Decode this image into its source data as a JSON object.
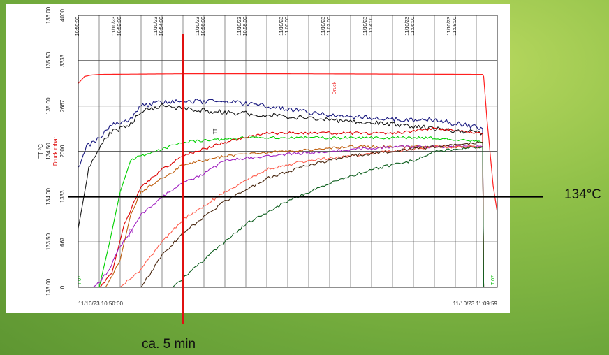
{
  "chart_data": {
    "type": "line",
    "x_start": "11/10/23 10:50:00",
    "x_end": "11/10/23 11:09:59",
    "xlim_min": [
      0,
      20
    ],
    "x_tick_labels": [
      [
        "",
        "10:50:00"
      ],
      [
        "11/10/23",
        "10:52:00"
      ],
      [
        "11/10/23",
        "10:54:00"
      ],
      [
        "11/10/23",
        "10:56:00"
      ],
      [
        "11/10/23",
        "10:58:00"
      ],
      [
        "11/10/23",
        "11:00:00"
      ],
      [
        "11/10/23",
        "11:02:00"
      ],
      [
        "11/10/23",
        "11:04:00"
      ],
      [
        "11/10/23",
        "11:06:00"
      ],
      [
        "11/10/23",
        "11:08:00"
      ]
    ],
    "y_temp_label": "TT °C",
    "y_temp_ticks": [
      "133.00",
      "133.50",
      "134.00",
      "134.50",
      "135.00",
      "135.50",
      "136.00"
    ],
    "y_temp_range": [
      133.0,
      136.0
    ],
    "y_press_label": "Druck mbar",
    "y_press_ticks": [
      "0",
      "667",
      "1333",
      "2000",
      "2667",
      "3333",
      "4000"
    ],
    "y_press_range": [
      0,
      4000
    ],
    "grid": true,
    "series": [
      {
        "name": "Druck",
        "axis": "pressure",
        "color": "#ff2020",
        "points": [
          [
            0,
            3000
          ],
          [
            0.3,
            3100
          ],
          [
            0.6,
            3120
          ],
          [
            1,
            3130
          ],
          [
            5,
            3140
          ],
          [
            10,
            3140
          ],
          [
            15,
            3135
          ],
          [
            19.3,
            3130
          ],
          [
            19.35,
            3100
          ],
          [
            19.5,
            2500
          ],
          [
            19.8,
            1500
          ],
          [
            20,
            1100
          ]
        ]
      },
      {
        "name": "TT",
        "axis": "temp",
        "color": "#1a1a80",
        "points": [
          [
            0,
            134.3
          ],
          [
            0.4,
            134.55
          ],
          [
            1,
            134.65
          ],
          [
            1.6,
            134.8
          ],
          [
            2.5,
            134.85
          ],
          [
            3,
            135.0
          ],
          [
            4,
            135.05
          ],
          [
            5,
            135.05
          ],
          [
            7,
            135.05
          ],
          [
            9,
            135.0
          ],
          [
            12,
            134.9
          ],
          [
            15,
            134.85
          ],
          [
            17,
            134.85
          ],
          [
            19.3,
            134.75
          ],
          [
            19.35,
            133.0
          ]
        ]
      },
      {
        "name": "",
        "axis": "temp",
        "color": "#1a1a1a",
        "points": [
          [
            0,
            133.65
          ],
          [
            0.5,
            134.3
          ],
          [
            1,
            134.55
          ],
          [
            1.5,
            134.7
          ],
          [
            2.5,
            134.8
          ],
          [
            3,
            134.95
          ],
          [
            4,
            135.0
          ],
          [
            6,
            134.95
          ],
          [
            9,
            134.9
          ],
          [
            12,
            134.85
          ],
          [
            15,
            134.8
          ],
          [
            17,
            134.75
          ],
          [
            19.3,
            134.7
          ],
          [
            19.35,
            133.0
          ]
        ]
      },
      {
        "name": "",
        "axis": "temp",
        "color": "#00d000",
        "points": [
          [
            1,
            133.0
          ],
          [
            1.5,
            133.5
          ],
          [
            2,
            134.05
          ],
          [
            2.5,
            134.4
          ],
          [
            3,
            134.45
          ],
          [
            5,
            134.6
          ],
          [
            8,
            134.65
          ],
          [
            11,
            134.65
          ],
          [
            14,
            134.65
          ],
          [
            17,
            134.65
          ],
          [
            19.3,
            134.6
          ],
          [
            19.35,
            133.0
          ],
          [
            19.6,
            133.0
          ]
        ]
      },
      {
        "name": "",
        "axis": "temp",
        "color": "#dd0000",
        "points": [
          [
            1,
            133.0
          ],
          [
            1.6,
            133.15
          ],
          [
            2.2,
            133.7
          ],
          [
            3,
            134.1
          ],
          [
            4,
            134.3
          ],
          [
            5,
            134.45
          ],
          [
            7,
            134.6
          ],
          [
            9,
            134.7
          ],
          [
            12,
            134.7
          ],
          [
            15,
            134.7
          ],
          [
            17,
            134.75
          ],
          [
            19.3,
            134.7
          ],
          [
            19.35,
            133.0
          ]
        ]
      },
      {
        "name": "",
        "axis": "temp",
        "color": "#c06010",
        "points": [
          [
            1.3,
            133.0
          ],
          [
            2,
            133.3
          ],
          [
            2.5,
            133.8
          ],
          [
            3,
            134.05
          ],
          [
            4,
            134.2
          ],
          [
            5,
            134.35
          ],
          [
            7,
            134.45
          ],
          [
            10,
            134.5
          ],
          [
            13,
            134.55
          ],
          [
            16,
            134.55
          ],
          [
            19.3,
            134.55
          ],
          [
            19.35,
            133.0
          ]
        ]
      },
      {
        "name": "",
        "axis": "temp",
        "color": "#a020c0",
        "points": [
          [
            0.7,
            133.0
          ],
          [
            1,
            133.05
          ],
          [
            1.5,
            133.2
          ],
          [
            2,
            133.45
          ],
          [
            2.5,
            133.6
          ],
          [
            3,
            133.8
          ],
          [
            4,
            134.0
          ],
          [
            5,
            134.15
          ],
          [
            6,
            134.25
          ],
          [
            7,
            134.4
          ],
          [
            9,
            134.45
          ],
          [
            12,
            134.5
          ],
          [
            15,
            134.55
          ],
          [
            17,
            134.55
          ],
          [
            19.3,
            134.55
          ],
          [
            19.35,
            133.0
          ]
        ]
      },
      {
        "name": "",
        "axis": "temp",
        "color": "#ff6050",
        "points": [
          [
            2,
            133.0
          ],
          [
            3,
            133.2
          ],
          [
            4,
            133.5
          ],
          [
            5,
            133.75
          ],
          [
            7,
            134.05
          ],
          [
            9,
            134.3
          ],
          [
            11,
            134.4
          ],
          [
            13,
            134.45
          ],
          [
            15,
            134.5
          ],
          [
            17,
            134.55
          ],
          [
            19.3,
            134.55
          ],
          [
            19.35,
            133.0
          ]
        ]
      },
      {
        "name": "",
        "axis": "temp",
        "color": "#4a2810",
        "points": [
          [
            3,
            133.0
          ],
          [
            4,
            133.35
          ],
          [
            5,
            133.6
          ],
          [
            7,
            133.95
          ],
          [
            9,
            134.2
          ],
          [
            11,
            134.35
          ],
          [
            13,
            134.45
          ],
          [
            15,
            134.5
          ],
          [
            17,
            134.55
          ],
          [
            19.3,
            134.6
          ],
          [
            19.35,
            133.0
          ]
        ]
      },
      {
        "name": "",
        "axis": "temp",
        "color": "#106020",
        "points": [
          [
            4.5,
            133.0
          ],
          [
            6,
            133.3
          ],
          [
            8,
            133.7
          ],
          [
            10,
            133.95
          ],
          [
            12,
            134.15
          ],
          [
            14,
            134.3
          ],
          [
            16,
            134.4
          ],
          [
            17,
            134.5
          ],
          [
            19.3,
            134.55
          ],
          [
            19.35,
            133.0
          ]
        ]
      }
    ],
    "annotations": {
      "series_tag_1": "T 07",
      "series_tag_2": "T 07",
      "series_tag_3": "TT",
      "series_tag_4": "Druck",
      "series_tag_5": "T 07"
    }
  },
  "callouts": {
    "horizontal_label": "134°C",
    "horizontal_value": 134.0,
    "vertical_label": "ca. 5 min",
    "vertical_minute": 5
  },
  "colors": {
    "horizontal_line": "#000000",
    "vertical_line": "#e01010"
  }
}
